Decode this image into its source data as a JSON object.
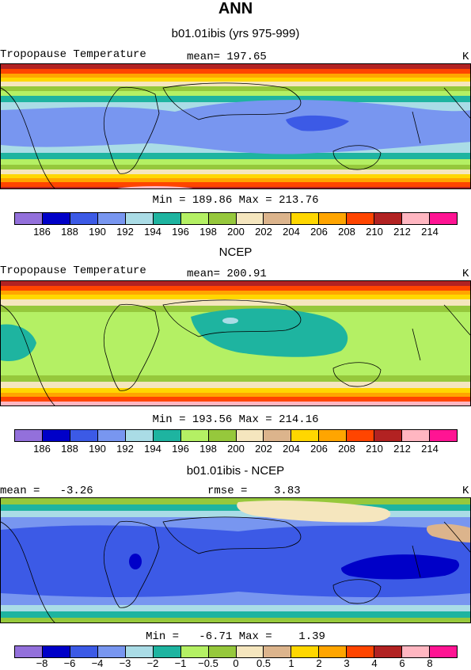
{
  "title": "ANN",
  "panels": [
    {
      "subtitle": "b01.01ibis (yrs 975-999)",
      "left_label": "Tropopause Temperature",
      "mid_label": "mean= 197.65",
      "unit": "K",
      "minmax": "Min = 189.86 Max = 213.76",
      "colorbar_labels": [
        "186",
        "188",
        "190",
        "192",
        "194",
        "196",
        "198",
        "200",
        "202",
        "204",
        "206",
        "208",
        "210",
        "212",
        "214"
      ],
      "stats": {
        "mean": 197.65,
        "min": 189.86,
        "max": 213.76
      }
    },
    {
      "subtitle": "NCEP",
      "left_label": "Tropopause Temperature",
      "mid_label": "mean= 200.91",
      "unit": "K",
      "minmax": "Min = 193.56 Max = 214.16",
      "colorbar_labels": [
        "186",
        "188",
        "190",
        "192",
        "194",
        "196",
        "198",
        "200",
        "202",
        "204",
        "206",
        "208",
        "210",
        "212",
        "214"
      ],
      "stats": {
        "mean": 200.91,
        "min": 193.56,
        "max": 214.16
      }
    },
    {
      "subtitle": "b01.01ibis - NCEP",
      "left_label": "mean =   -3.26",
      "mid_label": "rmse =    3.83",
      "unit": "K",
      "minmax": "Min =   -6.71 Max =    1.39",
      "colorbar_labels": [
        "−8",
        "−6",
        "−4",
        "−3",
        "−2",
        "−1",
        "−0.5",
        "0",
        "0.5",
        "1",
        "2",
        "3",
        "4",
        "6",
        "8"
      ],
      "stats": {
        "mean": -3.26,
        "rmse": 3.83,
        "min": -6.71,
        "max": 1.39
      }
    }
  ],
  "palette": [
    "#9370db",
    "#0000c8",
    "#3c5ae6",
    "#7896f0",
    "#aadce6",
    "#1eb4a0",
    "#b4f064",
    "#96c83c",
    "#f5e6be",
    "#dcb48c",
    "#ffd700",
    "#ffa500",
    "#ff4500",
    "#b22222",
    "#ffb6c1",
    "#ff1493"
  ]
}
